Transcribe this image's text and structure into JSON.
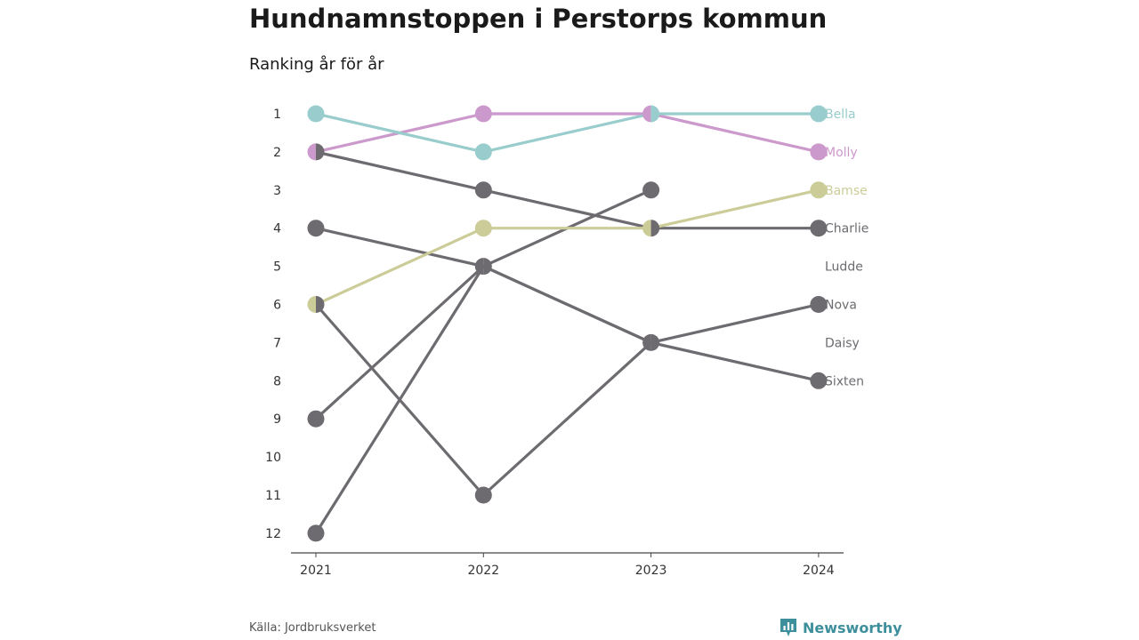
{
  "header": {
    "title": "Hundnamnstoppen i Perstorps kommun",
    "subtitle": "Ranking år för år"
  },
  "footer": {
    "source": "Källa: Jordbruksverket",
    "brand": "Newsworthy",
    "brand_color": "#3e8f9c",
    "brand_icon": "bar-chart-speech-icon"
  },
  "chart_data": {
    "type": "line",
    "subtype": "bump",
    "x": [
      "2021",
      "2022",
      "2023",
      "2024"
    ],
    "y_ticks": [
      1,
      2,
      3,
      4,
      5,
      6,
      7,
      8,
      9,
      10,
      11,
      12
    ],
    "ylim": [
      1,
      12
    ],
    "y_reversed": true,
    "grid": false,
    "series": [
      {
        "name": "Charlie",
        "values": [
          2,
          3,
          4,
          4
        ],
        "color": "#6d6b70"
      },
      {
        "name": "Ludde",
        "values": [
          4,
          5,
          7,
          null
        ],
        "color": "#6d6b70"
      },
      {
        "name": "Nova",
        "values": [
          6,
          11,
          7,
          6
        ],
        "color": "#6d6b70"
      },
      {
        "name": "Daisy",
        "values": [
          9,
          5,
          3,
          null
        ],
        "color": "#6d6b70"
      },
      {
        "name": "Sixten",
        "values": [
          12,
          5,
          7,
          8
        ],
        "color": "#6d6b70"
      },
      {
        "name": "Bamse",
        "values": [
          6,
          4,
          4,
          3
        ],
        "color": "#cccc99"
      },
      {
        "name": "Molly",
        "values": [
          2,
          1,
          1,
          2
        ],
        "color": "#cc99cc"
      },
      {
        "name": "Bella",
        "values": [
          1,
          2,
          1,
          1
        ],
        "color": "#99cccc"
      }
    ],
    "end_labels": [
      {
        "name": "Bella",
        "rank": 1,
        "color": "#99cccc"
      },
      {
        "name": "Molly",
        "rank": 2,
        "color": "#cc99cc"
      },
      {
        "name": "Bamse",
        "rank": 3,
        "color": "#cccc99"
      },
      {
        "name": "Charlie",
        "rank": 4,
        "color": "#6d6b70"
      },
      {
        "name": "Ludde",
        "rank": 5,
        "color": "#6d6b70"
      },
      {
        "name": "Nova",
        "rank": 6,
        "color": "#6d6b70"
      },
      {
        "name": "Daisy",
        "rank": 7,
        "color": "#6d6b70"
      },
      {
        "name": "Sixten",
        "rank": 8,
        "color": "#6d6b70"
      }
    ]
  }
}
